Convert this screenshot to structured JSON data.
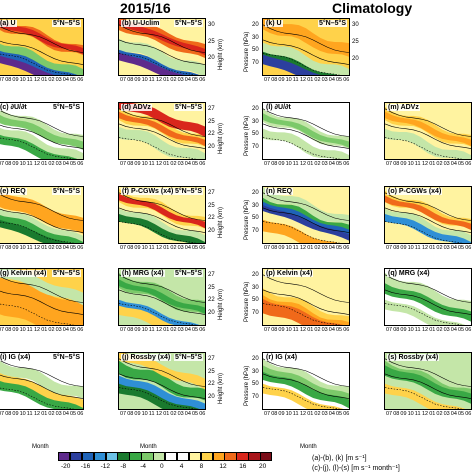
{
  "headers": {
    "left": "2015/16",
    "right": "Climatology"
  },
  "region_label": "5°N–5°S",
  "axis": {
    "x_label": "Month",
    "months": [
      "07",
      "08",
      "09",
      "10",
      "11",
      "12",
      "01",
      "02",
      "03",
      "04",
      "05",
      "06"
    ],
    "height_label": "Height (km)",
    "pressure_label": "Pressure (hPa)",
    "height_ticks_top": [
      "30",
      "25",
      "20"
    ],
    "pressure_ticks_top": [
      "20",
      "30",
      "50",
      "70"
    ],
    "height_ticks_lower": [
      "27",
      "25",
      "22",
      "20"
    ],
    "pressure_ticks_lower": [
      "20",
      "30",
      "50",
      "70"
    ]
  },
  "panels": {
    "a": {
      "label": "(a) U"
    },
    "b": {
      "label": "(b) U-Uclim"
    },
    "c": {
      "label": "(c) ∂U/∂t"
    },
    "d": {
      "label": "(d) ADVz"
    },
    "e": {
      "label": "(e) REQ"
    },
    "f": {
      "label": "(f) P-CGWs (x4)"
    },
    "g": {
      "label": "(g) Kelvin (x4)"
    },
    "h": {
      "label": "(h) MRG (x4)"
    },
    "i": {
      "label": "(i) IG (x4)"
    },
    "j": {
      "label": "(j) Rossby (x4)"
    },
    "k": {
      "label": "(k) U"
    },
    "l": {
      "label": "(l) ∂U/∂t"
    },
    "m": {
      "label": "(m) ADVz"
    },
    "n": {
      "label": "(n) REQ"
    },
    "o": {
      "label": "(o) P-CGWs (x4)"
    },
    "p": {
      "label": "(p) Kelvin (x4)"
    },
    "q": {
      "label": "(q) MRG (x4)"
    },
    "r": {
      "label": "(r) IG (x4)"
    },
    "s": {
      "label": "(s) Rossby (x4)"
    }
  },
  "colorbar": {
    "ticks": [
      "-20",
      "-16",
      "-12",
      "-8",
      "-4",
      "0",
      "4",
      "8",
      "12",
      "16",
      "20"
    ],
    "colors": [
      "#5e2a8c",
      "#2c3f9e",
      "#1f63b8",
      "#2f8fd6",
      "#6cc3e8",
      "#1a7a2e",
      "#39a845",
      "#7cc96a",
      "#c4e6a8",
      "#ffffff",
      "#ffffff",
      "#fff3a0",
      "#ffd24a",
      "#ffa51f",
      "#f0691a",
      "#d9261c",
      "#a8151a",
      "#7a0d18"
    ],
    "legend_line1": "(a)-(b), (k) [m s⁻¹]",
    "legend_line2": "(c)-(j), (l)-(s) [m s⁻¹ month⁻¹]"
  },
  "chart_data": {
    "type": "heatmap",
    "title": "",
    "x_label": "Month",
    "x_categories": [
      "07",
      "08",
      "09",
      "10",
      "11",
      "12",
      "01",
      "02",
      "03",
      "04",
      "05",
      "06"
    ],
    "y_label_left_column": "Height (km)",
    "y_label_right_column": "Pressure (hPa)",
    "colorbar_levels": [
      -20,
      -16,
      -12,
      -8,
      -4,
      0,
      4,
      8,
      12,
      16,
      20
    ],
    "units": [
      "(a)-(b), (k) [m s⁻¹]",
      "(c)-(j), (l)-(s) [m s⁻¹ month⁻¹]"
    ],
    "panels": [
      "(a) U",
      "(b) U-Uclim",
      "(c) ∂U/∂t",
      "(d) ADVz",
      "(e) REQ",
      "(f) P-CGWs (x4)",
      "(g) Kelvin (x4)",
      "(h) MRG (x4)",
      "(i) IG (x4)",
      "(j) Rossby (x4)",
      "(k) U",
      "(l) ∂U/∂t",
      "(m) ADVz",
      "(n) REQ",
      "(o) P-CGWs (x4)",
      "(p) Kelvin (x4)",
      "(q) MRG (x4)",
      "(r) IG (x4)",
      "(s) Rossby (x4)"
    ]
  }
}
